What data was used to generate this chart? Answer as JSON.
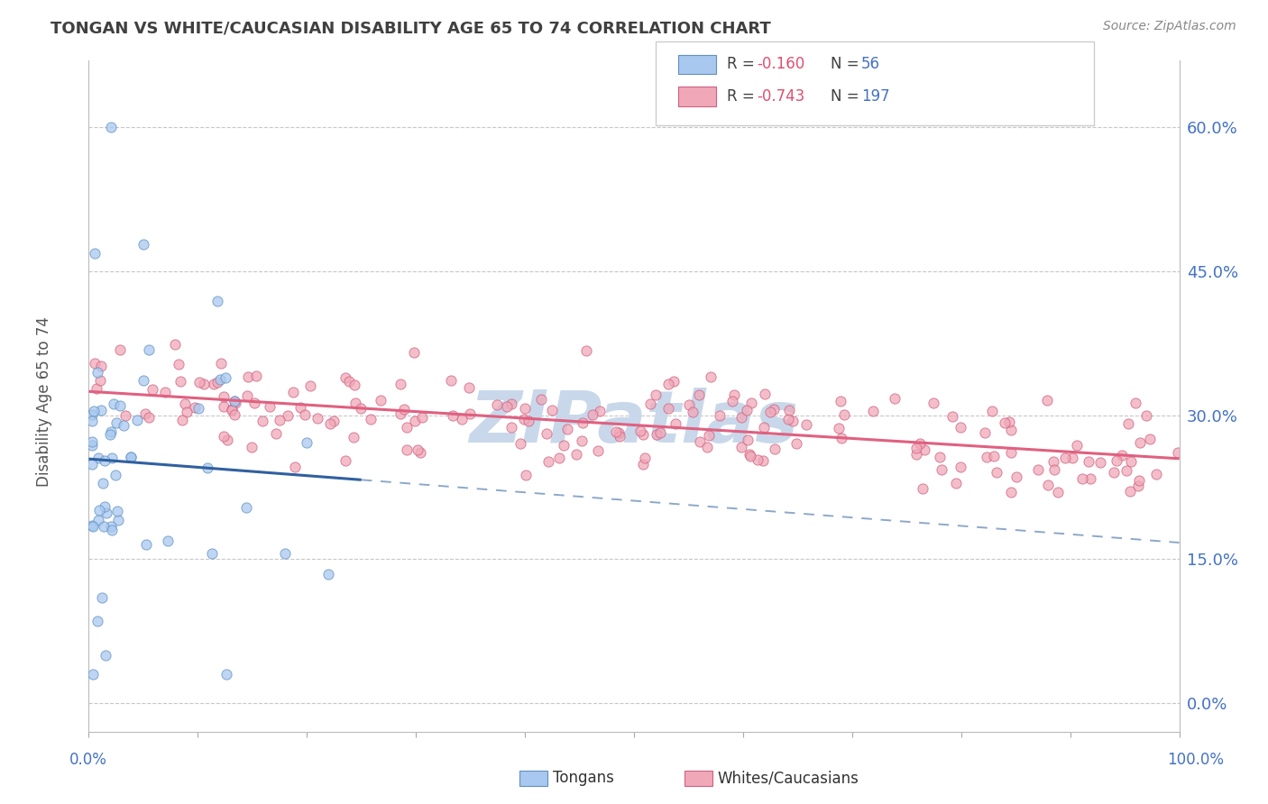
{
  "title": "TONGAN VS WHITE/CAUCASIAN DISABILITY AGE 65 TO 74 CORRELATION CHART",
  "source": "Source: ZipAtlas.com",
  "ylabel": "Disability Age 65 to 74",
  "ytick_vals": [
    0,
    15,
    30,
    45,
    60
  ],
  "ytick_labels": [
    "0.0%",
    "15.0%",
    "30.0%",
    "45.0%",
    "60.0%"
  ],
  "xlim": [
    0,
    100
  ],
  "ylim": [
    -3,
    67
  ],
  "tongan_color": "#a8c8f0",
  "tongan_edge": "#6090c0",
  "white_color": "#f0a8b8",
  "white_edge": "#d06080",
  "trend_tongan_color": "#3060a0",
  "trend_white_color": "#e06080",
  "watermark": "ZIPatlas",
  "watermark_color": "#c8d8ea",
  "background_color": "#ffffff",
  "grid_color": "#c8c8c8",
  "title_color": "#404040",
  "axis_label_color": "#4472c4",
  "legend_R_color": "#e05070",
  "legend_N_color": "#4472c4",
  "legend_text_color": "#404040"
}
